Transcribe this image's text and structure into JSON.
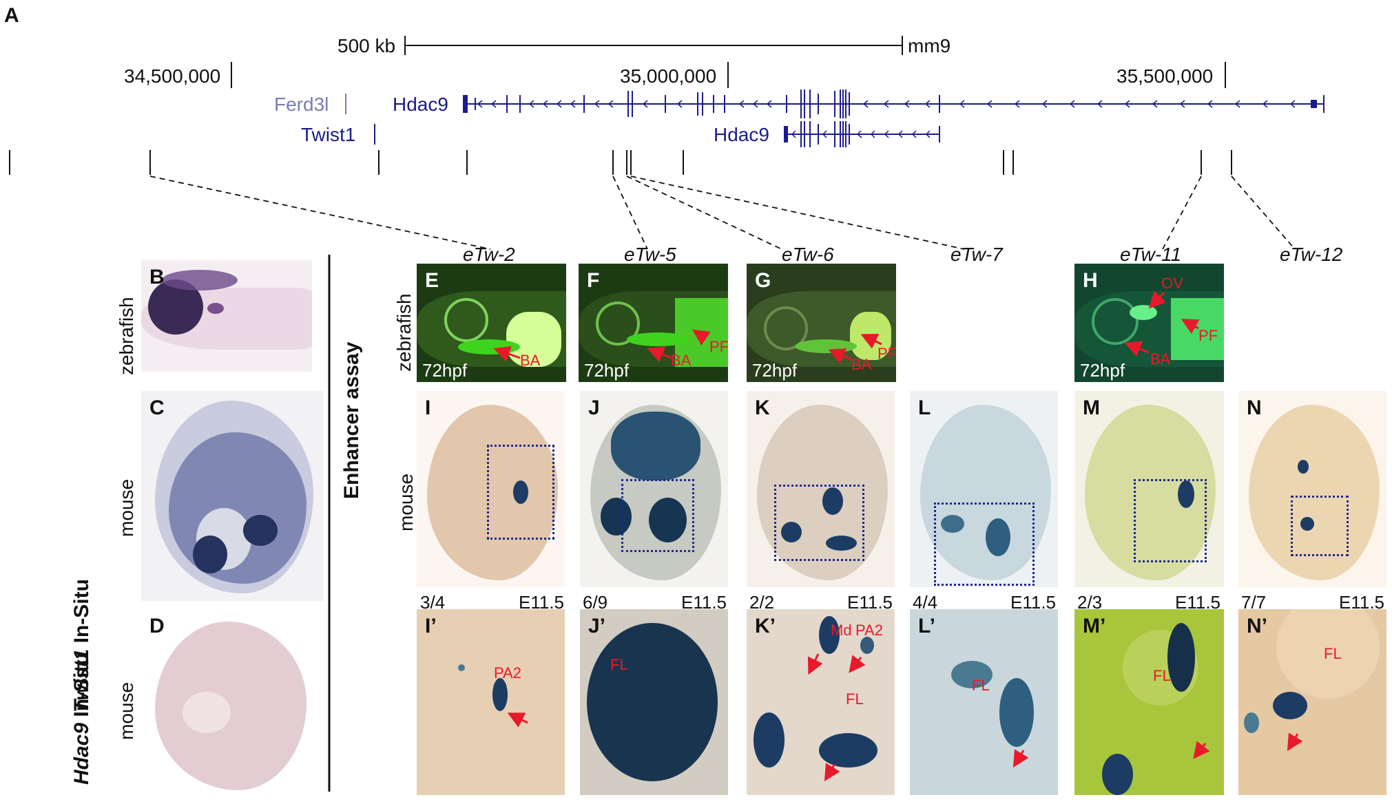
{
  "panel_letters": {
    "A": "A",
    "B": "B",
    "C": "C",
    "D": "D",
    "E": "E",
    "F": "F",
    "G": "G",
    "H": "H",
    "I": "I",
    "J": "J",
    "K": "K",
    "L": "L",
    "M": "M",
    "N": "N",
    "I2": "I’",
    "J2": "J’",
    "K2": "K’",
    "L2": "L’",
    "M2": "M’",
    "N2": "N’"
  },
  "track": {
    "scale_label": "500 kb",
    "assembly": "mm9",
    "coords": [
      "34,500,000",
      "35,000,000",
      "35,500,000"
    ],
    "genes": {
      "ferd3l": "Ferd3l",
      "hdac9_a": "Hdac9",
      "twist1": "Twist1",
      "hdac9_b": "Hdac9"
    }
  },
  "enhancers": [
    "eTw-2",
    "eTw-5",
    "eTw-6",
    "eTw-7",
    "eTw-11",
    "eTw-12"
  ],
  "side_labels": {
    "twist_insitu_gene": "Twist1",
    "twist_insitu_rest": " In-Situ",
    "hdac9_insitu_gene": "Hdac9",
    "hdac9_insitu_rest": " In-Situ",
    "zebrafish": "zebrafish",
    "mouse": "mouse",
    "enhancer_assay": "Enhancer assay"
  },
  "stages": {
    "zf": "72hpf",
    "mouse": "E11.5"
  },
  "annotations": {
    "BA": "BA",
    "PF": "PF",
    "OV": "OV",
    "PA2": "PA2",
    "FL": "FL",
    "Md": "Md"
  },
  "counts": [
    "3/4",
    "6/9",
    "2/2",
    "4/4",
    "2/3",
    "7/7"
  ],
  "colors": {
    "gene_blue": "#1b1b8c",
    "ferd3l": "#7a7ab8",
    "stain": "#1c3c63",
    "red": "#e8192b",
    "zf_green": "#39c21c"
  }
}
